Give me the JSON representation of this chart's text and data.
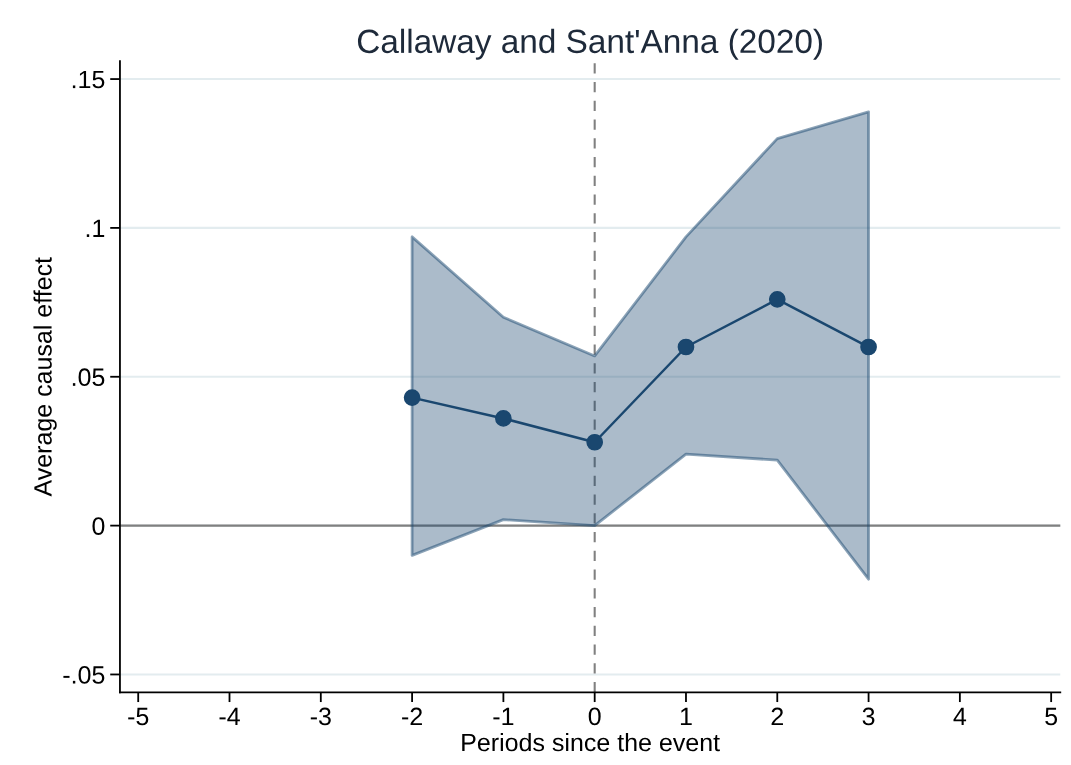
{
  "chart_data": {
    "type": "line",
    "title": "Callaway and Sant'Anna (2020)",
    "xlabel": "Periods since the event",
    "ylabel": "Average causal effect",
    "x": [
      -2,
      -1,
      0,
      1,
      2,
      3
    ],
    "series": [
      {
        "color": "#1a476f",
        "values": [
          0.043,
          0.036,
          0.028,
          0.06,
          0.076,
          0.06
        ],
        "lower": [
          -0.01,
          0.002,
          0.0,
          0.024,
          0.022,
          -0.018
        ],
        "upper": [
          0.097,
          0.07,
          0.057,
          0.097,
          0.13,
          0.139
        ]
      }
    ],
    "marker": "circle",
    "line_style": "solid",
    "grid": "y",
    "legend": false,
    "xlim": [
      -5.2,
      5.1
    ],
    "xticks": [
      -5,
      -4,
      -3,
      -2,
      -1,
      0,
      1,
      2,
      3,
      4,
      5
    ],
    "ylim": [
      -0.056,
      0.156
    ],
    "yticks": [
      {
        "value": -0.05,
        "label": "-.05"
      },
      {
        "value": 0,
        "label": "0"
      },
      {
        "value": 0.05,
        "label": ".05"
      },
      {
        "value": 0.1,
        "label": ".1"
      },
      {
        "value": 0.15,
        "label": ".15"
      }
    ],
    "ref_lines": [
      {
        "axis": "y",
        "value": 0,
        "color": "#808080",
        "line_style": "solid"
      },
      {
        "axis": "x",
        "value": 0,
        "color": "#808080",
        "line_style": "dashed"
      }
    ]
  }
}
